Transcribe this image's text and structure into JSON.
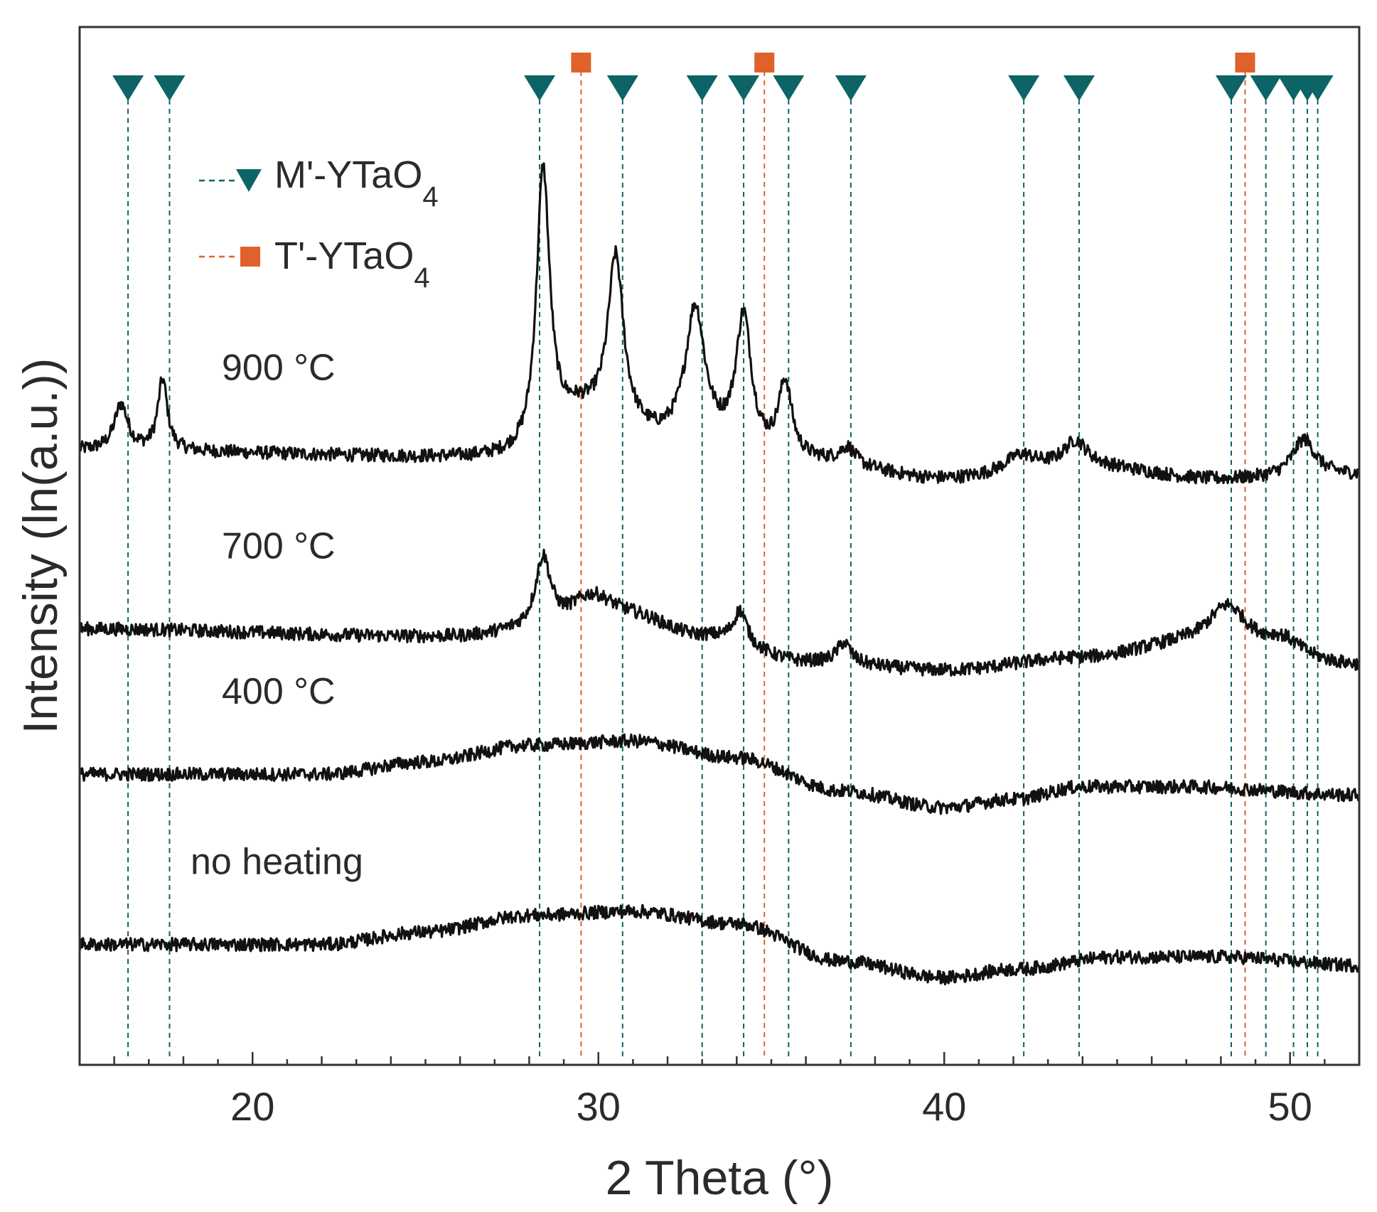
{
  "chart_data": {
    "type": "line",
    "title": "",
    "xlabel": "2 Theta (°)",
    "ylabel": "Intensity (ln(a.u.))",
    "xlim": [
      15,
      52
    ],
    "ylim": [
      0,
      12.5
    ],
    "x_ticks": [
      20,
      30,
      40,
      50
    ],
    "x_tick_labels": [
      "20",
      "30",
      "40",
      "50"
    ],
    "grid": false,
    "legend": {
      "position": "top-left",
      "entries": [
        {
          "label": "M'-YTaO",
          "subscript": "4",
          "marker": "triangle-down",
          "color": "#0d6466"
        },
        {
          "label": "T'-YTaO",
          "subscript": "4",
          "marker": "square",
          "color": "#e0622a"
        }
      ]
    },
    "reference_peaks": {
      "M'-YTaO4": [
        16.4,
        17.6,
        28.3,
        30.7,
        33.0,
        34.2,
        35.5,
        37.3,
        42.3,
        43.9,
        48.3,
        49.3,
        50.1,
        50.5,
        50.8
      ],
      "T'-YTaO4": [
        29.5,
        34.8,
        48.7
      ]
    },
    "series": [
      {
        "name": "900 °C",
        "label": "900 °C",
        "baseline": 7.4,
        "background": [
          [
            15,
            0.0
          ],
          [
            28,
            -0.1
          ],
          [
            29.5,
            0.4
          ],
          [
            32,
            0.1
          ],
          [
            36,
            -0.15
          ],
          [
            40,
            -0.35
          ],
          [
            44,
            -0.2
          ],
          [
            48,
            -0.35
          ],
          [
            52,
            -0.3
          ]
        ],
        "peaks": [
          {
            "center": 16.2,
            "height": 0.55,
            "width": 0.35
          },
          {
            "center": 17.4,
            "height": 0.85,
            "width": 0.25
          },
          {
            "center": 28.4,
            "height": 3.4,
            "width": 0.35
          },
          {
            "center": 30.5,
            "height": 2.0,
            "width": 0.4
          },
          {
            "center": 32.8,
            "height": 1.6,
            "width": 0.5
          },
          {
            "center": 34.2,
            "height": 1.6,
            "width": 0.4
          },
          {
            "center": 35.4,
            "height": 0.9,
            "width": 0.35
          },
          {
            "center": 37.2,
            "height": 0.2,
            "width": 0.4
          },
          {
            "center": 42.2,
            "height": 0.2,
            "width": 0.8
          },
          {
            "center": 43.8,
            "height": 0.3,
            "width": 0.6
          },
          {
            "center": 50.4,
            "height": 0.45,
            "width": 0.6
          }
        ]
      },
      {
        "name": "700 °C",
        "label": "700 °C",
        "baseline": 5.25,
        "background": [
          [
            15,
            0.0
          ],
          [
            26,
            -0.1
          ],
          [
            28,
            -0.05
          ],
          [
            31,
            0.1
          ],
          [
            33,
            -0.1
          ],
          [
            36,
            -0.4
          ],
          [
            40,
            -0.5
          ],
          [
            44,
            -0.35
          ],
          [
            47,
            -0.2
          ],
          [
            52,
            -0.45
          ]
        ],
        "peaks": [
          {
            "center": 28.4,
            "height": 0.85,
            "width": 0.4
          },
          {
            "center": 29.8,
            "height": 0.35,
            "width": 1.2
          },
          {
            "center": 34.1,
            "height": 0.4,
            "width": 0.35
          },
          {
            "center": 37.1,
            "height": 0.25,
            "width": 0.35
          },
          {
            "center": 48.2,
            "height": 0.5,
            "width": 1.0
          },
          {
            "center": 49.8,
            "height": 0.2,
            "width": 1.0
          }
        ]
      },
      {
        "name": "400 °C",
        "label": "400 °C",
        "baseline": 3.5,
        "background": [
          [
            15,
            0.0
          ],
          [
            22,
            0.0
          ],
          [
            25,
            0.15
          ],
          [
            28,
            0.35
          ],
          [
            31,
            0.4
          ],
          [
            34,
            0.2
          ],
          [
            37,
            -0.2
          ],
          [
            40,
            -0.4
          ],
          [
            42,
            -0.3
          ],
          [
            44,
            -0.15
          ],
          [
            47,
            -0.15
          ],
          [
            52,
            -0.25
          ]
        ],
        "peaks": []
      },
      {
        "name": "no heating",
        "label": "no heating",
        "baseline": 1.45,
        "background": [
          [
            15,
            0.0
          ],
          [
            22,
            0.0
          ],
          [
            25,
            0.15
          ],
          [
            28,
            0.35
          ],
          [
            31,
            0.4
          ],
          [
            34,
            0.25
          ],
          [
            37,
            -0.2
          ],
          [
            40,
            -0.4
          ],
          [
            42,
            -0.3
          ],
          [
            45,
            -0.15
          ],
          [
            48,
            -0.15
          ],
          [
            52,
            -0.25
          ]
        ],
        "peaks": []
      }
    ]
  }
}
